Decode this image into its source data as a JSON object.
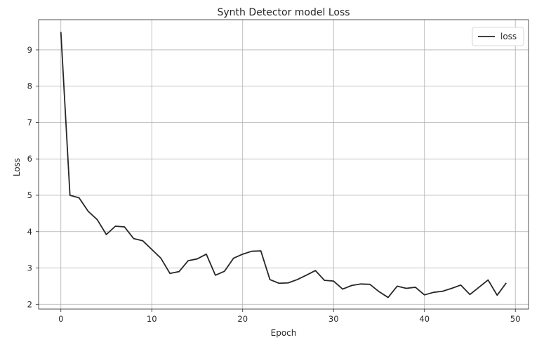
{
  "chart_data": {
    "type": "line",
    "title": "Synth Detector model Loss",
    "xlabel": "Epoch",
    "ylabel": "Loss",
    "xlim": [
      -2.45,
      51.45
    ],
    "ylim": [
      1.87,
      9.83
    ],
    "xticks": [
      0,
      10,
      20,
      30,
      40,
      50
    ],
    "yticks": [
      2,
      3,
      4,
      5,
      6,
      7,
      8,
      9
    ],
    "grid": true,
    "legend_position": "top-right",
    "colors": {
      "loss": "#262626"
    },
    "x": [
      0,
      1,
      2,
      3,
      4,
      5,
      6,
      7,
      8,
      9,
      10,
      11,
      12,
      13,
      14,
      15,
      16,
      17,
      18,
      19,
      20,
      21,
      22,
      23,
      24,
      25,
      26,
      27,
      28,
      29,
      30,
      31,
      32,
      33,
      34,
      35,
      36,
      37,
      38,
      39,
      40,
      41,
      42,
      43,
      44,
      45,
      46,
      47,
      48,
      49
    ],
    "series": [
      {
        "name": "loss",
        "values": [
          9.49,
          5.0,
          4.93,
          4.56,
          4.33,
          3.92,
          4.15,
          4.13,
          3.81,
          3.75,
          3.51,
          3.27,
          2.85,
          2.9,
          3.2,
          3.25,
          3.38,
          2.8,
          2.91,
          3.27,
          3.38,
          3.46,
          3.47,
          2.68,
          2.58,
          2.59,
          2.68,
          2.8,
          2.93,
          2.66,
          2.64,
          2.42,
          2.52,
          2.56,
          2.55,
          2.35,
          2.19,
          2.5,
          2.44,
          2.47,
          2.26,
          2.33,
          2.36,
          2.44,
          2.53,
          2.27,
          2.47,
          2.67,
          2.25,
          2.59
        ]
      }
    ]
  }
}
